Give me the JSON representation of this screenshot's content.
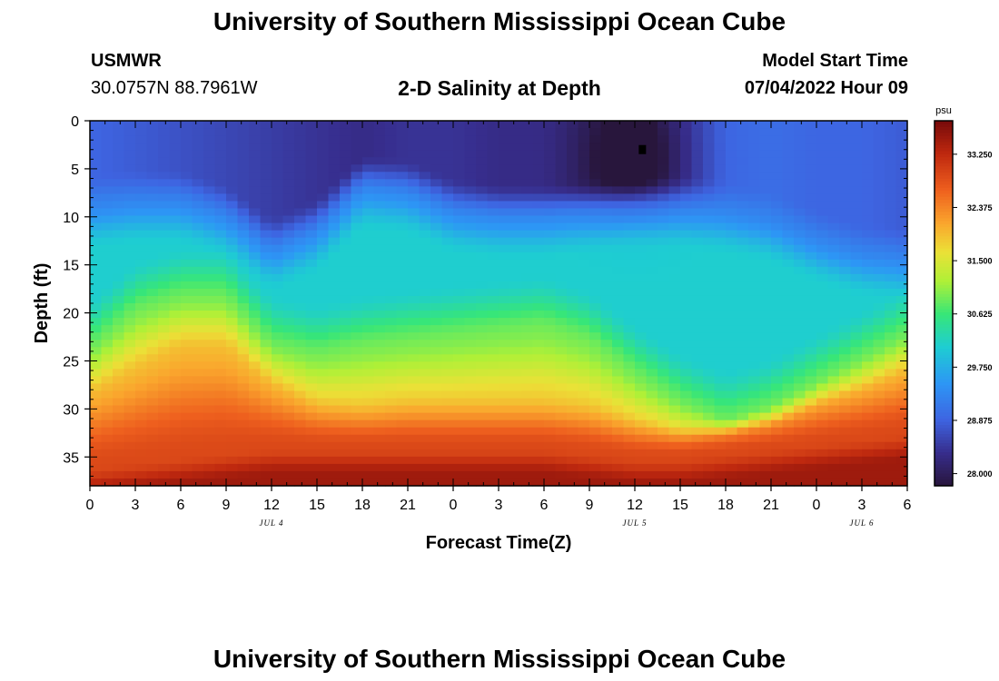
{
  "header": {
    "title": "University of Southern Mississippi Ocean Cube",
    "station": "USMWR",
    "coordinates": "30.0757N  88.7961W",
    "chart_title": "2-D Salinity at Depth",
    "model_start_label": "Model Start Time",
    "model_start_value": "07/04/2022 Hour 09"
  },
  "footer": {
    "title": "University of Southern Mississippi Ocean Cube"
  },
  "chart_data": {
    "type": "heatmap",
    "title": "2-D Salinity at Depth",
    "xlabel": "Forecast Time(Z)",
    "ylabel": "Depth (ft)",
    "x_ticks": [
      "0",
      "3",
      "6",
      "9",
      "12",
      "15",
      "18",
      "21",
      "0",
      "3",
      "6",
      "9",
      "12",
      "15",
      "18",
      "21",
      "0",
      "3",
      "6"
    ],
    "x_hours": [
      0,
      3,
      6,
      9,
      12,
      15,
      18,
      21,
      24,
      27,
      30,
      33,
      36,
      39,
      42,
      45,
      48,
      51,
      54
    ],
    "xlim": [
      0,
      54
    ],
    "date_labels": [
      {
        "hour": 12,
        "label": "JUL 4"
      },
      {
        "hour": 36,
        "label": "JUL 5"
      },
      {
        "hour": 51,
        "label": "JUL 6"
      }
    ],
    "y_ticks": [
      0,
      5,
      10,
      15,
      20,
      25,
      30,
      35
    ],
    "ylim": [
      0,
      38
    ],
    "colorbar": {
      "unit": "psu",
      "ticks": [
        "33.250",
        "32.375",
        "31.500",
        "30.625",
        "29.750",
        "28.875",
        "28.000"
      ],
      "range": [
        27.8,
        33.8
      ]
    },
    "marker": {
      "hour": 36.5,
      "depth": 3
    },
    "layer_boundaries_ft": {
      "hours": [
        0,
        3,
        6,
        9,
        12,
        15,
        18,
        21,
        24,
        27,
        30,
        33,
        36,
        39,
        42,
        45,
        48,
        51,
        54
      ],
      "blue_to_green": [
        9.5,
        9.0,
        9.0,
        10.5,
        14.0,
        12.0,
        7.5,
        8.0,
        10.0,
        10.5,
        10.5,
        10.0,
        9.5,
        9.5,
        10.0,
        11.0,
        13.0,
        14.5,
        15.0
      ],
      "green_to_orange": [
        22.5,
        18.5,
        17.0,
        17.0,
        22.0,
        23.0,
        22.0,
        21.5,
        21.0,
        20.5,
        20.0,
        21.5,
        25.0,
        28.0,
        30.0,
        28.5,
        26.0,
        23.5,
        21.0
      ],
      "orange_to_red": [
        27.0,
        24.5,
        22.0,
        22.0,
        26.0,
        28.5,
        29.0,
        28.5,
        28.5,
        28.5,
        28.5,
        29.0,
        30.5,
        31.5,
        31.0,
        30.0,
        28.0,
        26.5,
        24.5
      ],
      "red_to_darkred": [
        36.0,
        35.5,
        35.0,
        34.5,
        34.0,
        34.0,
        34.0,
        34.0,
        34.0,
        34.0,
        34.0,
        34.5,
        35.0,
        35.0,
        34.5,
        34.0,
        33.5,
        33.0,
        32.5
      ]
    },
    "surface_salinity_psu": [
      28.9,
      28.8,
      28.7,
      28.6,
      28.5,
      28.4,
      28.3,
      28.4,
      28.4,
      28.3,
      28.3,
      28.1,
      27.9,
      28.4,
      28.9,
      29.0,
      28.9,
      28.9,
      28.8
    ]
  }
}
